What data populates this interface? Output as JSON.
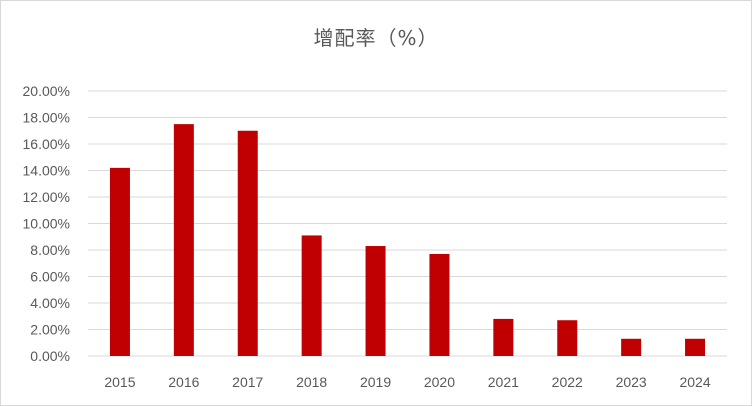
{
  "chart_data": {
    "type": "bar",
    "title": "增配率（%）",
    "categories": [
      "2015",
      "2016",
      "2017",
      "2018",
      "2019",
      "2020",
      "2021",
      "2022",
      "2023",
      "2024"
    ],
    "series": [
      {
        "values": [
          14.2,
          17.5,
          17.0,
          9.1,
          8.3,
          7.7,
          2.8,
          2.7,
          1.3,
          1.3
        ]
      }
    ],
    "y_tick_labels": [
      "0.00%",
      "2.00%",
      "4.00%",
      "6.00%",
      "8.00%",
      "10.00%",
      "12.00%",
      "14.00%",
      "16.00%",
      "18.00%",
      "20.00%"
    ],
    "ylim": [
      0,
      20
    ],
    "xlabel": "",
    "ylabel": "",
    "grid": true,
    "legend": "none",
    "bar_color": "#c00000",
    "grid_color": "#d9d9d9"
  }
}
